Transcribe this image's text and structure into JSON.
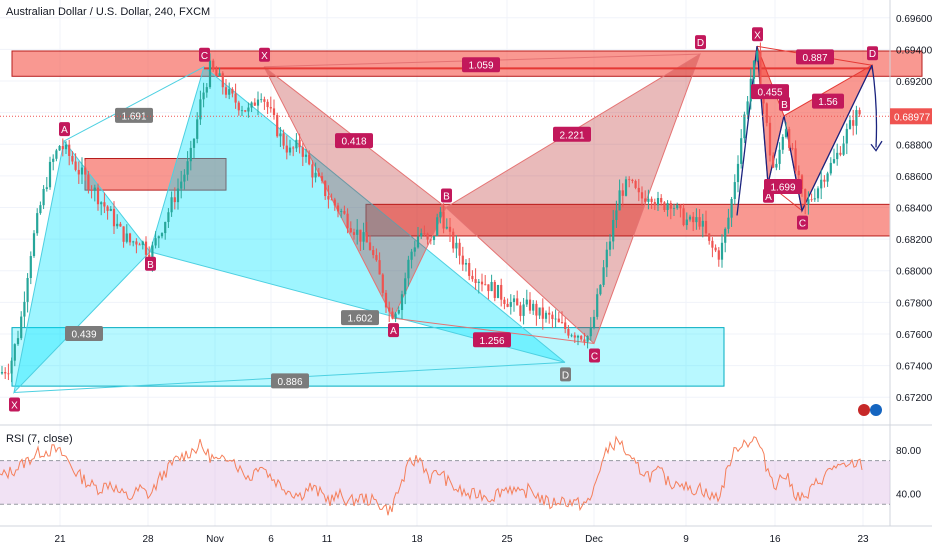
{
  "title": "Australian Dollar / U.S. Dollar, 240, FXCM",
  "colors": {
    "bull": "#26a69a",
    "bear": "#ef5350",
    "cyan_fill": "#00e5ff",
    "cyan_label": "#7b7b7b",
    "red_fill": "#f44336",
    "label_magenta": "#c2185b",
    "price_tag": "#ef5350",
    "rsi_line": "#f57f5a",
    "rsi_band": "#e1bee7",
    "xabcd_line": "#1a237e"
  },
  "chart_data": {
    "type": "candlestick",
    "x_axis": {
      "tick_labels": [
        "21",
        "28",
        "Nov",
        "6",
        "11",
        "18",
        "25",
        "Dec",
        "9",
        "16",
        "23"
      ]
    },
    "y_axis": {
      "range": [
        0.671,
        0.697
      ],
      "tick_labels": [
        "0.69600",
        "0.69400",
        "0.69200",
        "0.69000",
        "0.68800",
        "0.68600",
        "0.68400",
        "0.68200",
        "0.68000",
        "0.67800",
        "0.67600",
        "0.67400",
        "0.67200"
      ]
    },
    "last_price": "0.68977",
    "close_path": [
      [
        0,
        0.6735
      ],
      [
        10,
        0.674
      ],
      [
        20,
        0.6765
      ],
      [
        30,
        0.681
      ],
      [
        40,
        0.684
      ],
      [
        50,
        0.6865
      ],
      [
        60,
        0.688
      ],
      [
        70,
        0.6872
      ],
      [
        80,
        0.6862
      ],
      [
        90,
        0.6855
      ],
      [
        100,
        0.6845
      ],
      [
        110,
        0.6836
      ],
      [
        120,
        0.6825
      ],
      [
        130,
        0.6818
      ],
      [
        140,
        0.682
      ],
      [
        150,
        0.681
      ],
      [
        160,
        0.6825
      ],
      [
        170,
        0.684
      ],
      [
        180,
        0.6855
      ],
      [
        190,
        0.687
      ],
      [
        200,
        0.6905
      ],
      [
        210,
        0.6928
      ],
      [
        220,
        0.692
      ],
      [
        230,
        0.691
      ],
      [
        240,
        0.6905
      ],
      [
        250,
        0.69
      ],
      [
        260,
        0.6915
      ],
      [
        270,
        0.69
      ],
      [
        280,
        0.6885
      ],
      [
        290,
        0.6875
      ],
      [
        300,
        0.688
      ],
      [
        310,
        0.6865
      ],
      [
        320,
        0.6855
      ],
      [
        330,
        0.6845
      ],
      [
        340,
        0.6838
      ],
      [
        350,
        0.683
      ],
      [
        360,
        0.6822
      ],
      [
        370,
        0.6815
      ],
      [
        380,
        0.6795
      ],
      [
        390,
        0.6772
      ],
      [
        400,
        0.678
      ],
      [
        410,
        0.681
      ],
      [
        420,
        0.6825
      ],
      [
        430,
        0.6815
      ],
      [
        440,
        0.6838
      ],
      [
        450,
        0.682
      ],
      [
        460,
        0.681
      ],
      [
        470,
        0.68
      ],
      [
        480,
        0.6795
      ],
      [
        490,
        0.679
      ],
      [
        500,
        0.6785
      ],
      [
        510,
        0.678
      ],
      [
        520,
        0.6775
      ],
      [
        530,
        0.6778
      ],
      [
        540,
        0.6772
      ],
      [
        550,
        0.677
      ],
      [
        560,
        0.6765
      ],
      [
        570,
        0.6762
      ],
      [
        580,
        0.676
      ],
      [
        590,
        0.6758
      ],
      [
        600,
        0.679
      ],
      [
        610,
        0.682
      ],
      [
        620,
        0.685
      ],
      [
        630,
        0.6855
      ],
      [
        640,
        0.6845
      ],
      [
        650,
        0.685
      ],
      [
        660,
        0.684
      ],
      [
        670,
        0.6845
      ],
      [
        680,
        0.6835
      ],
      [
        690,
        0.683
      ],
      [
        700,
        0.6832
      ],
      [
        710,
        0.6815
      ],
      [
        720,
        0.681
      ],
      [
        730,
        0.6838
      ],
      [
        740,
        0.688
      ],
      [
        750,
        0.692
      ],
      [
        757,
        0.6935
      ],
      [
        765,
        0.69
      ],
      [
        770,
        0.6875
      ],
      [
        775,
        0.686
      ],
      [
        785,
        0.6895
      ],
      [
        795,
        0.6865
      ],
      [
        805,
        0.684
      ],
      [
        815,
        0.685
      ],
      [
        825,
        0.6862
      ],
      [
        835,
        0.687
      ],
      [
        845,
        0.6885
      ],
      [
        855,
        0.6898
      ],
      [
        862,
        0.69
      ]
    ],
    "zones": [
      {
        "kind": "red",
        "from_to_x": [
          12,
          922
        ],
        "y": [
          0.6939,
          0.6923
        ]
      },
      {
        "kind": "red",
        "from_to_x": [
          85,
          226
        ],
        "y": [
          0.6871,
          0.6851
        ]
      },
      {
        "kind": "red",
        "from_to_x": [
          366,
          890
        ],
        "y": [
          0.6842,
          0.6822
        ]
      },
      {
        "kind": "cyan",
        "from_to_x": [
          12,
          724
        ],
        "y": [
          0.6764,
          0.6727
        ]
      }
    ],
    "patterns": [
      {
        "color": "cyan",
        "points": {
          "X": [
            14,
            0.6723
          ],
          "A": [
            64,
            0.6882
          ],
          "B": [
            150,
            0.6812
          ],
          "C": [
            204,
            0.6929
          ],
          "D": [
            565,
            0.6742
          ]
        },
        "ratios": [
          {
            "text": "0.439",
            "pos": [
              84,
              0.676
            ]
          },
          {
            "text": "1.691",
            "pos": [
              134,
              0.6898
            ]
          },
          {
            "text": "1.602",
            "pos": [
              360,
              0.677
            ]
          },
          {
            "text": "0.886",
            "pos": [
              290,
              0.673
            ]
          }
        ]
      },
      {
        "color": "gray",
        "points": {
          "X": [
            264,
            0.6929
          ],
          "A": [
            393,
            0.677
          ],
          "B": [
            446,
            0.684
          ],
          "C": [
            594,
            0.6754
          ],
          "D": [
            700,
            0.6937
          ]
        },
        "ratios": [
          {
            "text": "0.418",
            "pos": [
              354,
              0.6882
            ]
          },
          {
            "text": "1.256",
            "pos": [
              492,
              0.6756
            ]
          },
          {
            "text": "2.221",
            "pos": [
              572,
              0.6886
            ]
          },
          {
            "text": "1.059",
            "pos": [
              481,
              0.693
            ]
          }
        ]
      },
      {
        "color": "red",
        "points": {
          "X": [
            757,
            0.6942
          ],
          "A": [
            768,
            0.6855
          ],
          "B": [
            784,
            0.6898
          ],
          "C": [
            802,
            0.6838
          ],
          "D": [
            872,
            0.693
          ]
        },
        "ratios": [
          {
            "text": "0.455",
            "pos": [
              770,
              0.6913
            ]
          },
          {
            "text": "1.699",
            "pos": [
              783,
              0.6853
            ]
          },
          {
            "text": "1.56",
            "pos": [
              828,
              0.6907
            ]
          },
          {
            "text": "0.887",
            "pos": [
              815,
              0.6935
            ]
          }
        ]
      }
    ],
    "point_labels": [
      "X",
      "A",
      "B",
      "C",
      "D"
    ],
    "rsi": {
      "title": "RSI (7, close)",
      "range": [
        10,
        100
      ],
      "band": [
        30,
        70
      ],
      "tick_labels": [
        "80.00",
        "40.00"
      ],
      "values": [
        [
          0,
          55
        ],
        [
          15,
          62
        ],
        [
          30,
          72
        ],
        [
          40,
          78
        ],
        [
          55,
          80
        ],
        [
          65,
          74
        ],
        [
          75,
          60
        ],
        [
          90,
          48
        ],
        [
          100,
          44
        ],
        [
          110,
          50
        ],
        [
          120,
          40
        ],
        [
          130,
          36
        ],
        [
          140,
          44
        ],
        [
          150,
          38
        ],
        [
          160,
          54
        ],
        [
          175,
          70
        ],
        [
          190,
          78
        ],
        [
          200,
          84
        ],
        [
          210,
          74
        ],
        [
          220,
          68
        ],
        [
          230,
          76
        ],
        [
          240,
          62
        ],
        [
          250,
          54
        ],
        [
          260,
          68
        ],
        [
          270,
          56
        ],
        [
          280,
          48
        ],
        [
          290,
          42
        ],
        [
          300,
          38
        ],
        [
          310,
          46
        ],
        [
          320,
          40
        ],
        [
          330,
          34
        ],
        [
          340,
          38
        ],
        [
          350,
          32
        ],
        [
          360,
          36
        ],
        [
          370,
          34
        ],
        [
          380,
          30
        ],
        [
          390,
          24
        ],
        [
          400,
          46
        ],
        [
          410,
          68
        ],
        [
          420,
          72
        ],
        [
          430,
          54
        ],
        [
          440,
          60
        ],
        [
          450,
          48
        ],
        [
          460,
          42
        ],
        [
          470,
          38
        ],
        [
          480,
          40
        ],
        [
          490,
          36
        ],
        [
          500,
          42
        ],
        [
          510,
          46
        ],
        [
          520,
          38
        ],
        [
          530,
          44
        ],
        [
          540,
          36
        ],
        [
          550,
          30
        ],
        [
          560,
          34
        ],
        [
          570,
          32
        ],
        [
          580,
          30
        ],
        [
          590,
          32
        ],
        [
          600,
          64
        ],
        [
          610,
          84
        ],
        [
          620,
          88
        ],
        [
          630,
          70
        ],
        [
          640,
          62
        ],
        [
          650,
          56
        ],
        [
          660,
          60
        ],
        [
          670,
          48
        ],
        [
          680,
          52
        ],
        [
          690,
          42
        ],
        [
          700,
          46
        ],
        [
          710,
          36
        ],
        [
          720,
          38
        ],
        [
          730,
          70
        ],
        [
          740,
          86
        ],
        [
          750,
          88
        ],
        [
          757,
          90
        ],
        [
          765,
          68
        ],
        [
          775,
          48
        ],
        [
          785,
          58
        ],
        [
          795,
          40
        ],
        [
          805,
          34
        ],
        [
          815,
          48
        ],
        [
          825,
          56
        ],
        [
          835,
          66
        ],
        [
          845,
          62
        ],
        [
          855,
          68
        ],
        [
          862,
          66
        ]
      ]
    }
  }
}
